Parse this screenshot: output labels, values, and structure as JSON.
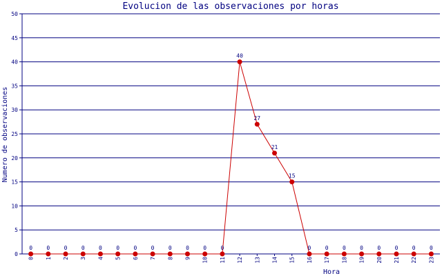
{
  "chart_data": {
    "type": "line",
    "title": "Evolucion de las observaciones por horas",
    "xlabel": "Hora",
    "ylabel": "Numero de observaciones",
    "x": [
      "0",
      "1",
      "2",
      "3",
      "4",
      "5",
      "6",
      "7",
      "8",
      "9",
      "10",
      "11",
      "12",
      "13",
      "14",
      "15",
      "16",
      "17",
      "18",
      "19",
      "20",
      "21",
      "22",
      "23"
    ],
    "series": [
      {
        "values": [
          0,
          0,
          0,
          0,
          0,
          0,
          0,
          0,
          0,
          0,
          0,
          0,
          40,
          27,
          21,
          15,
          0,
          0,
          0,
          0,
          0,
          0,
          0,
          0
        ]
      }
    ],
    "ylim": [
      0,
      50
    ],
    "yticks": [
      0,
      5,
      10,
      15,
      20,
      25,
      30,
      35,
      40,
      45,
      50
    ],
    "grid": true,
    "legend": "none",
    "colors": {
      "text": "#000080",
      "grid": "#000080",
      "axis": "#000080",
      "line": "#cc0000",
      "marker": "#cc0000",
      "background": "#ffffff"
    }
  }
}
